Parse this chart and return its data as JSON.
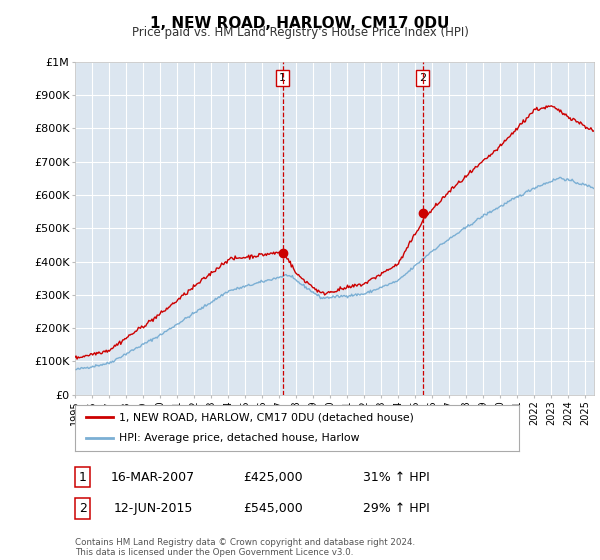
{
  "title": "1, NEW ROAD, HARLOW, CM17 0DU",
  "subtitle": "Price paid vs. HM Land Registry's House Price Index (HPI)",
  "background_color": "#ffffff",
  "plot_bg_color": "#dce6f0",
  "grid_color": "#ffffff",
  "line1_color": "#cc0000",
  "line2_color": "#7bafd4",
  "vline_color": "#cc0000",
  "ylim": [
    0,
    1000000
  ],
  "yticks": [
    0,
    100000,
    200000,
    300000,
    400000,
    500000,
    600000,
    700000,
    800000,
    900000,
    1000000
  ],
  "ytick_labels": [
    "£0",
    "£100K",
    "£200K",
    "£300K",
    "£400K",
    "£500K",
    "£600K",
    "£700K",
    "£800K",
    "£900K",
    "£1M"
  ],
  "sale1_date": 2007.21,
  "sale1_price": 425000,
  "sale1_label": "1",
  "sale2_date": 2015.44,
  "sale2_price": 545000,
  "sale2_label": "2",
  "legend_line1": "1, NEW ROAD, HARLOW, CM17 0DU (detached house)",
  "legend_line2": "HPI: Average price, detached house, Harlow",
  "table_row1": [
    "1",
    "16-MAR-2007",
    "£425,000",
    "31% ↑ HPI"
  ],
  "table_row2": [
    "2",
    "12-JUN-2015",
    "£545,000",
    "29% ↑ HPI"
  ],
  "footer": "Contains HM Land Registry data © Crown copyright and database right 2024.\nThis data is licensed under the Open Government Licence v3.0.",
  "xmin": 1995.0,
  "xmax": 2025.5
}
